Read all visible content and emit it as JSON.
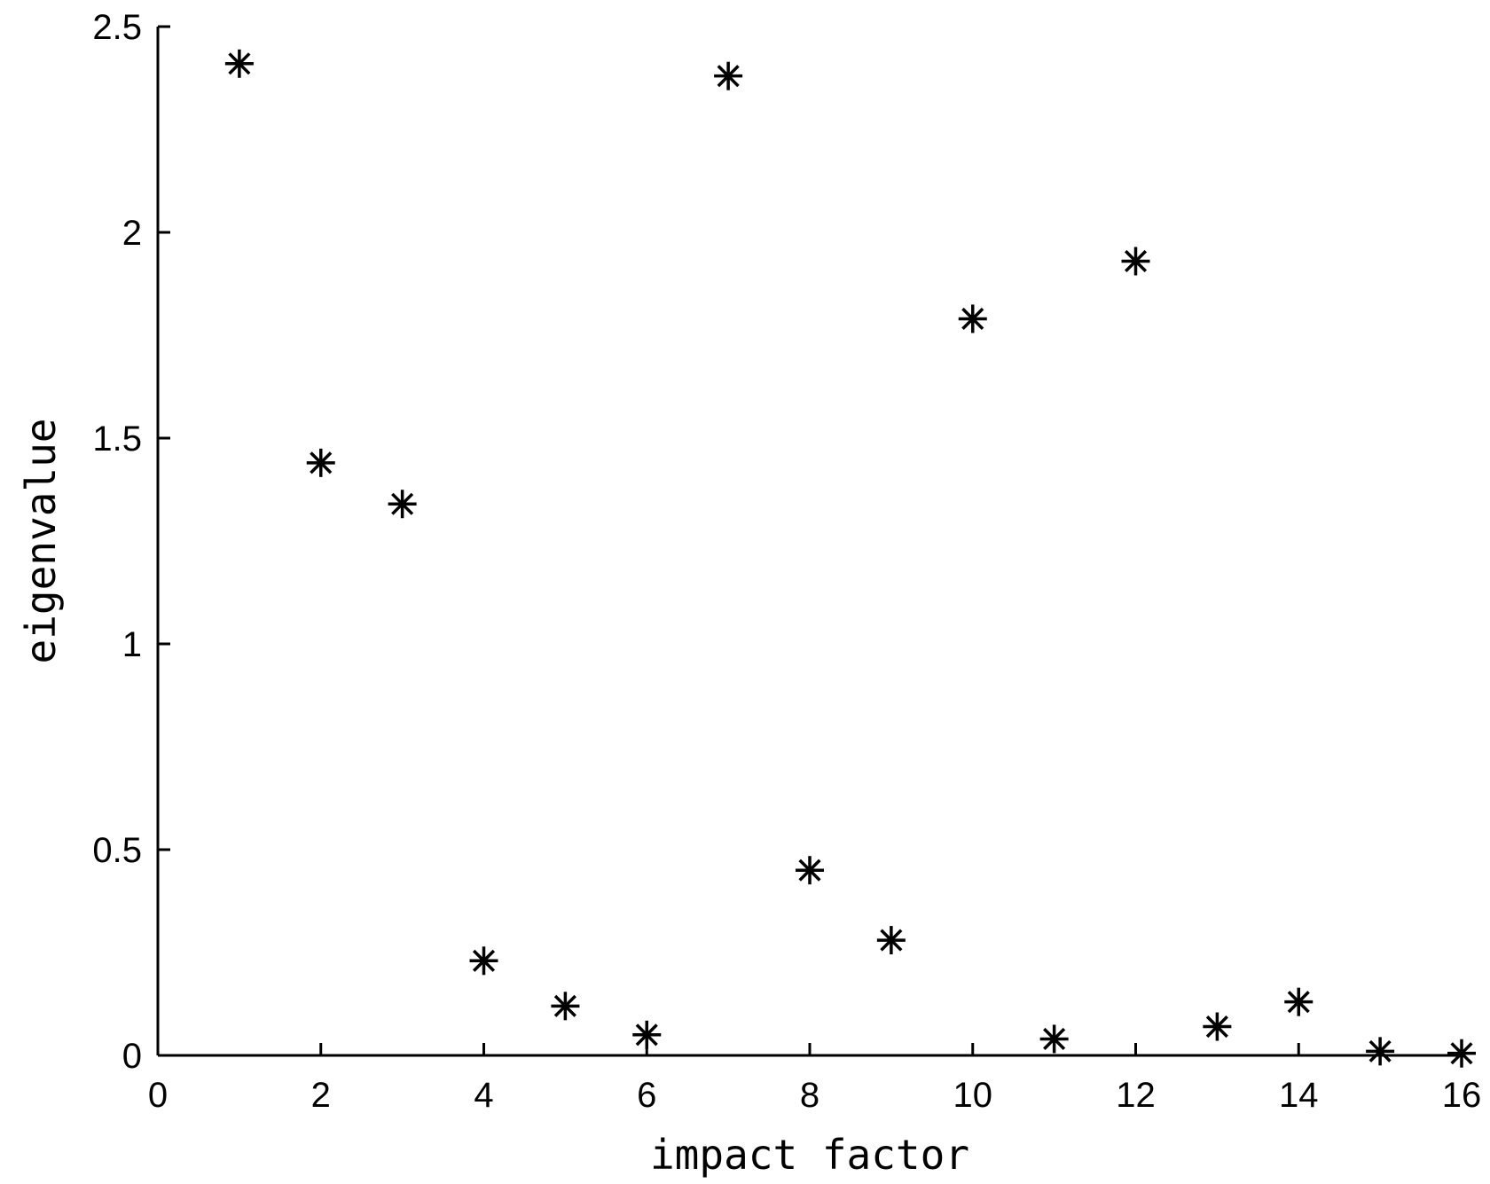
{
  "chart_data": {
    "type": "scatter",
    "title": "",
    "xlabel": "impact factor",
    "ylabel": "eigenvalue",
    "xlim": [
      0,
      16
    ],
    "ylim": [
      0,
      2.5
    ],
    "xticks": [
      "0",
      "2",
      "4",
      "6",
      "8",
      "10",
      "12",
      "14",
      "16"
    ],
    "yticks": [
      "0",
      "0.5",
      "1",
      "1.5",
      "2",
      "2.5"
    ],
    "grid": false,
    "marker": "asterisk",
    "color": "#000000",
    "series": [
      {
        "x": [
          1,
          2,
          3,
          4,
          5,
          6,
          7,
          8,
          9,
          10,
          11,
          12,
          13,
          14,
          15,
          16
        ],
        "y": [
          2.41,
          1.44,
          1.34,
          0.23,
          0.12,
          0.05,
          2.38,
          0.45,
          0.28,
          1.79,
          0.04,
          1.93,
          0.07,
          0.13,
          0.01,
          0.005
        ]
      }
    ]
  }
}
